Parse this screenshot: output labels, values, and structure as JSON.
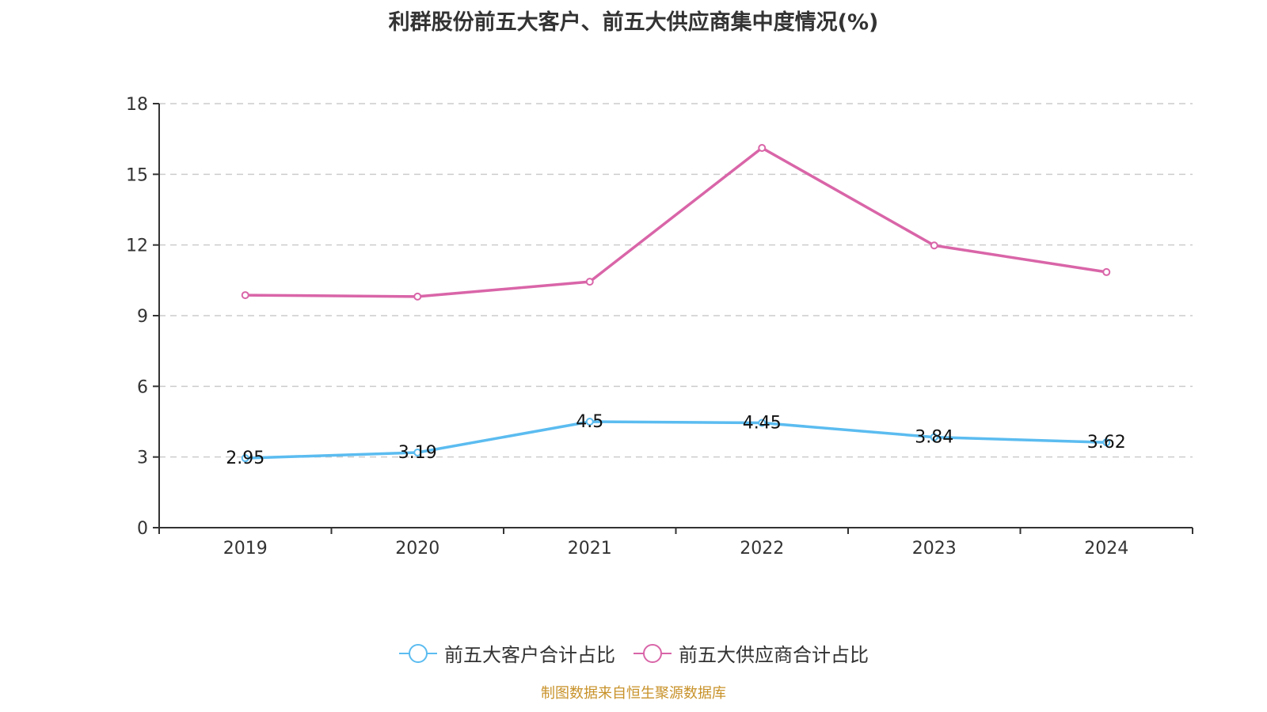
{
  "title": "利群股份前五大客户、前五大供应商集中度情况(%)",
  "source_note": "制图数据来自恒生聚源数据库",
  "colors": {
    "customers": "#5bbcf0",
    "suppliers": "#d965a8",
    "grid": "#cccccc",
    "axis": "#333333",
    "source": "#c8922a"
  },
  "legend": [
    {
      "label": "前五大客户合计占比",
      "color": "#5bbcf0",
      "icon": "circle-line-icon"
    },
    {
      "label": "前五大供应商合计占比",
      "color": "#d965a8",
      "icon": "circle-line-icon"
    }
  ],
  "chart_data": {
    "type": "line",
    "title": "利群股份前五大客户、前五大供应商集中度情况(%)",
    "xlabel": "",
    "ylabel": "",
    "categories": [
      "2019",
      "2020",
      "2021",
      "2022",
      "2023",
      "2024"
    ],
    "ylim": [
      0,
      18
    ],
    "yticks": [
      "0",
      "3",
      "6",
      "9",
      "12",
      "15",
      "18"
    ],
    "grid": true,
    "legend_position": "bottom-center",
    "series": [
      {
        "name": "前五大客户合计占比",
        "values": [
          2.95,
          3.19,
          4.5,
          4.45,
          3.84,
          3.62
        ],
        "labels": [
          "2.95",
          "3.19",
          "4.5",
          "4.45",
          "3.84",
          "3.62"
        ],
        "show_labels": true
      },
      {
        "name": "前五大供应商合计占比",
        "values": [
          9.87,
          9.81,
          10.44,
          16.12,
          11.98,
          10.85
        ],
        "show_labels": false
      }
    ]
  }
}
